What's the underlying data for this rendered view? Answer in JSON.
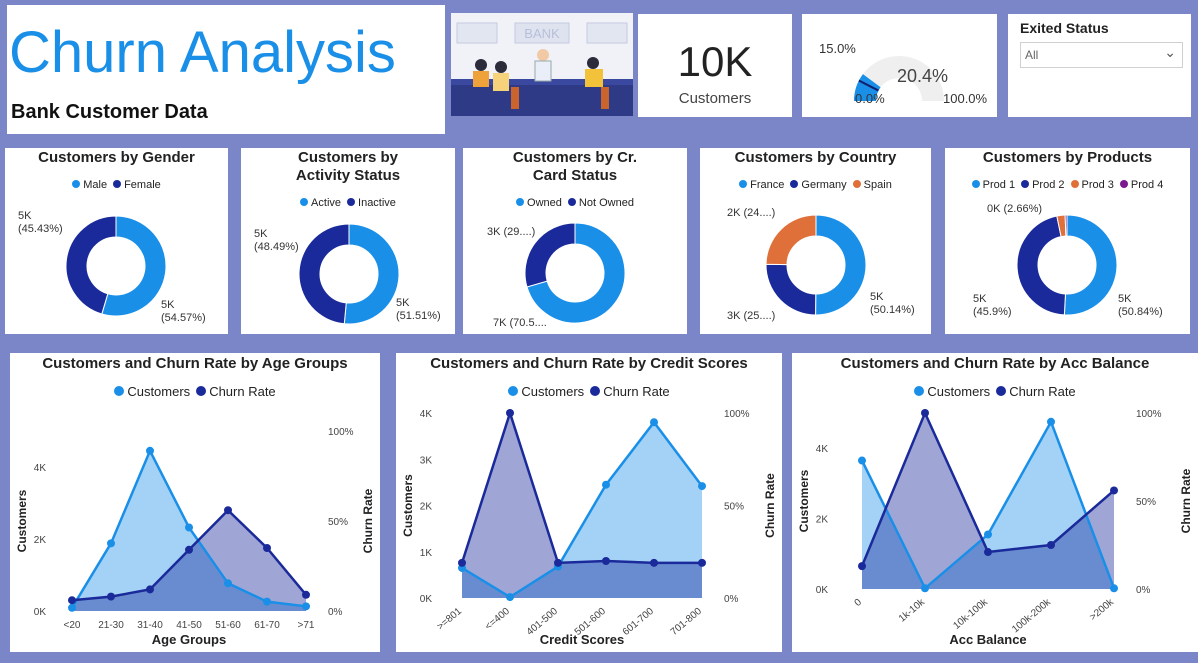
{
  "header": {
    "title": "Churn Analysis",
    "subtitle": "Bank Customer Data",
    "image_sign": "BANK"
  },
  "kpi": {
    "value": "10K",
    "label": "Customers"
  },
  "gauge": {
    "value_label": "20.4%",
    "target_label": "15.0%",
    "min_label": "0.0%",
    "max_label": "100.0%",
    "value": 20.4,
    "target": 15.0
  },
  "filter": {
    "title": "Exited Status",
    "value": "All",
    "chevron_icon": "chevron-down-icon"
  },
  "colors": {
    "light_blue": "#1a8fe8",
    "dark_blue": "#1b2a9a",
    "orange": "#e0703a",
    "purple": "#7a1a8f"
  },
  "donuts": [
    {
      "title": "Customers by Gender",
      "legend": [
        {
          "label": "Male",
          "color": "#1a8fe8"
        },
        {
          "label": "Female",
          "color": "#1b2a9a"
        }
      ],
      "chart_data": {
        "type": "pie",
        "donut": true,
        "slices": [
          {
            "name": "Male",
            "value": 54.57
          },
          {
            "name": "Female",
            "value": 45.43
          }
        ]
      },
      "labels": [
        {
          "line1": "5K",
          "line2": "(45.43%)"
        },
        {
          "line1": "5K",
          "line2": "(54.57%)"
        }
      ]
    },
    {
      "title": "Customers by Activity Status",
      "legend": [
        {
          "label": "Active",
          "color": "#1a8fe8"
        },
        {
          "label": "Inactive",
          "color": "#1b2a9a"
        }
      ],
      "chart_data": {
        "type": "pie",
        "donut": true,
        "slices": [
          {
            "name": "Active",
            "value": 51.51
          },
          {
            "name": "Inactive",
            "value": 48.49
          }
        ]
      },
      "labels": [
        {
          "line1": "5K",
          "line2": "(48.49%)"
        },
        {
          "line1": "5K",
          "line2": "(51.51%)"
        }
      ]
    },
    {
      "title": "Customers by Cr. Card Status",
      "legend": [
        {
          "label": "Owned",
          "color": "#1a8fe8"
        },
        {
          "label": "Not Owned",
          "color": "#1b2a9a"
        }
      ],
      "chart_data": {
        "type": "pie",
        "donut": true,
        "slices": [
          {
            "name": "Owned",
            "value": 70.5
          },
          {
            "name": "Not Owned",
            "value": 29.5
          }
        ]
      },
      "labels": [
        {
          "line1": "3K (29....)",
          "line2": ""
        },
        {
          "line1": "7K (70.5....",
          "line2": ""
        }
      ]
    },
    {
      "title": "Customers by Country",
      "legend": [
        {
          "label": "France",
          "color": "#1a8fe8"
        },
        {
          "label": "Germany",
          "color": "#1b2a9a"
        },
        {
          "label": "Spain",
          "color": "#e0703a"
        }
      ],
      "chart_data": {
        "type": "pie",
        "donut": true,
        "slices": [
          {
            "name": "France",
            "value": 50.14
          },
          {
            "name": "Germany",
            "value": 25.09
          },
          {
            "name": "Spain",
            "value": 24.77
          }
        ]
      },
      "labels": [
        {
          "line1": "2K (24....)",
          "line2": ""
        },
        {
          "line1": "3K (25....)",
          "line2": ""
        },
        {
          "line1": "5K",
          "line2": "(50.14%)"
        }
      ]
    },
    {
      "title": "Customers by Products",
      "legend": [
        {
          "label": "Prod 1",
          "color": "#1a8fe8"
        },
        {
          "label": "Prod 2",
          "color": "#1b2a9a"
        },
        {
          "label": "Prod 3",
          "color": "#e0703a"
        },
        {
          "label": "Prod 4",
          "color": "#7a1a8f"
        }
      ],
      "chart_data": {
        "type": "pie",
        "donut": true,
        "slices": [
          {
            "name": "Prod 1",
            "value": 50.84
          },
          {
            "name": "Prod 2",
            "value": 45.9
          },
          {
            "name": "Prod 3",
            "value": 2.66
          },
          {
            "name": "Prod 4",
            "value": 0.6
          }
        ]
      },
      "labels": [
        {
          "line1": "0K (2.66%)",
          "line2": ""
        },
        {
          "line1": "5K",
          "line2": "(45.9%)"
        },
        {
          "line1": "5K",
          "line2": "(50.84%)"
        }
      ]
    }
  ],
  "area_charts": [
    {
      "title": "Customers and Churn Rate by Age Groups",
      "legend": [
        "Customers",
        "Churn Rate"
      ],
      "xlabel": "Age Groups",
      "ylabel": "Customers",
      "y2label": "Churn Rate",
      "yticks": [
        "0K",
        "2K",
        "4K"
      ],
      "y2ticks": [
        "0%",
        "50%",
        "100%"
      ],
      "chart_data": {
        "type": "area",
        "categories": [
          "<20",
          "21-30",
          "31-40",
          "41-50",
          "51-60",
          "61-70",
          ">71"
        ],
        "series": [
          {
            "name": "Customers",
            "axis": "left",
            "values": [
              89,
              1880,
              4450,
              2320,
              770,
              260,
              130
            ]
          },
          {
            "name": "Churn Rate",
            "axis": "right",
            "values": [
              6,
              8,
              12,
              34,
              56,
              35,
              9
            ]
          }
        ],
        "ylim": [
          0,
          5000
        ],
        "y2lim": [
          0,
          100
        ]
      }
    },
    {
      "title": "Customers and Churn Rate by Credit Scores",
      "legend": [
        "Customers",
        "Churn Rate"
      ],
      "xlabel": "Credit Scores",
      "ylabel": "Customers",
      "y2label": "Churn Rate",
      "yticks": [
        "0K",
        "1K",
        "2K",
        "3K",
        "4K"
      ],
      "y2ticks": [
        "0%",
        "50%",
        "100%"
      ],
      "chart_data": {
        "type": "area",
        "categories": [
          ">=801",
          "<=400",
          "401-500",
          "501-600",
          "601-700",
          "701-800"
        ],
        "series": [
          {
            "name": "Customers",
            "axis": "left",
            "values": [
              650,
              20,
              680,
              2450,
              3800,
              2420
            ]
          },
          {
            "name": "Churn Rate",
            "axis": "right",
            "values": [
              19,
              100,
              19,
              20,
              19,
              19
            ]
          }
        ],
        "ylim": [
          0,
          4000
        ],
        "y2lim": [
          0,
          100
        ]
      }
    },
    {
      "title": "Customers and Churn Rate by Acc Balance",
      "legend": [
        "Customers",
        "Churn Rate"
      ],
      "xlabel": "Acc Balance",
      "ylabel": "Customers",
      "y2label": "Churn Rate",
      "yticks": [
        "0K",
        "2K",
        "4K"
      ],
      "y2ticks": [
        "0%",
        "50%",
        "100%"
      ],
      "chart_data": {
        "type": "area",
        "categories": [
          "0",
          "1k-10k",
          "10k-100k",
          "100k-200k",
          ">200k"
        ],
        "series": [
          {
            "name": "Customers",
            "axis": "left",
            "values": [
              3650,
              20,
              1550,
              4750,
              20
            ]
          },
          {
            "name": "Churn Rate",
            "axis": "right",
            "values": [
              13,
              100,
              21,
              25,
              56
            ]
          }
        ],
        "ylim": [
          0,
          5000
        ],
        "y2lim": [
          0,
          100
        ]
      }
    }
  ]
}
